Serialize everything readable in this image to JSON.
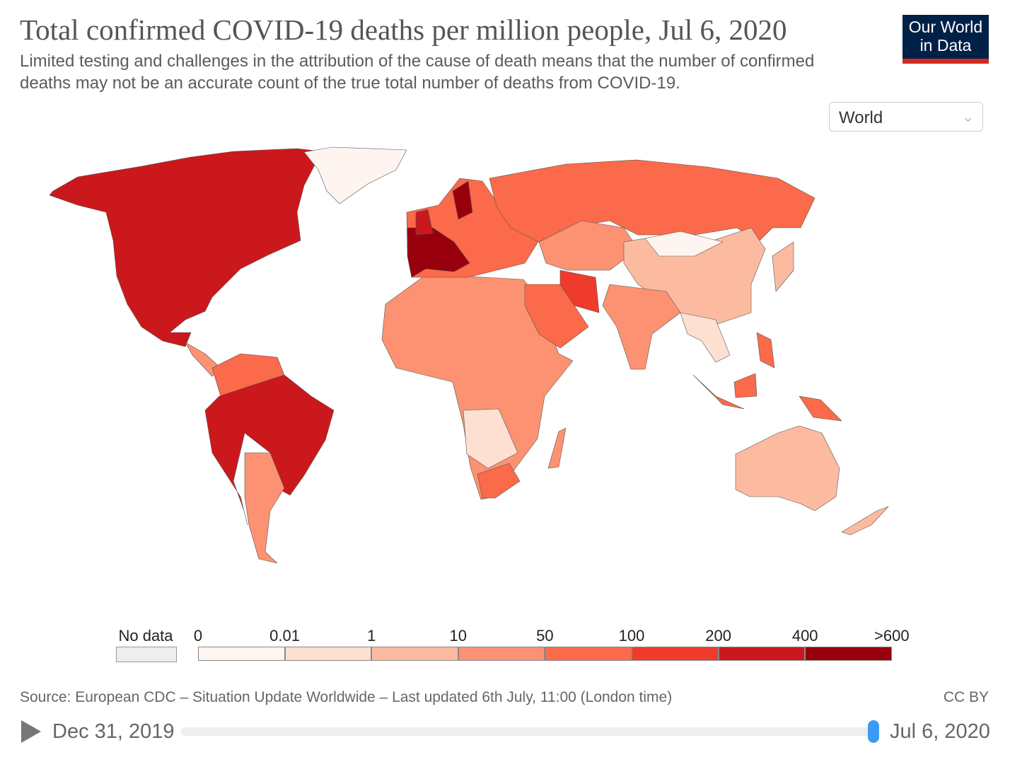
{
  "header": {
    "title": "Total confirmed COVID-19 deaths per million people, Jul 6, 2020",
    "subtitle": "Limited testing and challenges in the attribution of the cause of death means that the number of confirmed deaths may not be an accurate count of the true total number of deaths from COVID-19.",
    "logo": "Our World in Data",
    "region_select": "World",
    "select_icon": "chevron-down-icon"
  },
  "legend": {
    "no_data_label": "No data",
    "no_data_color": "#eeeeee",
    "ticks": [
      "0",
      "0.01",
      "1",
      "10",
      "50",
      "100",
      "200",
      "400",
      ">600"
    ],
    "colors": [
      "#fff5f0",
      "#fee0d2",
      "#fcbba1",
      "#fc9272",
      "#fb6a4a",
      "#ef3b2c",
      "#cb181d",
      "#99000d"
    ]
  },
  "footer": {
    "source": "Source: European CDC – Situation Update Worldwide – Last updated 6th July, 11:00 (London time)",
    "license": "CC BY",
    "start_date": "Dec 31, 2019",
    "end_date": "Jul 6, 2020",
    "timeline_position": 1.0,
    "play_icon": "play-icon"
  }
}
